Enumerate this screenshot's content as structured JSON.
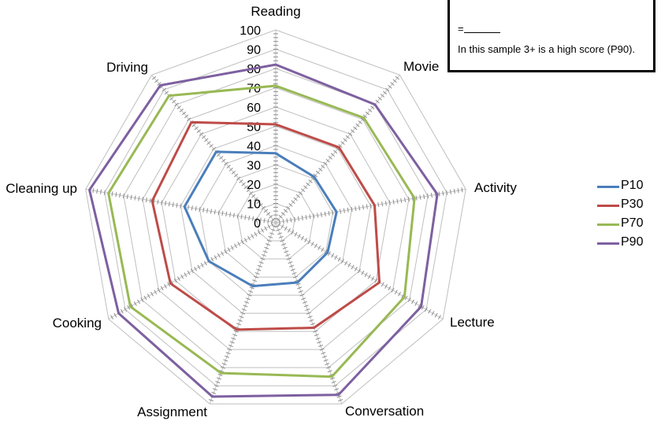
{
  "chart_data": {
    "type": "radar",
    "axes": [
      "Reading",
      "Movie",
      "Activity",
      "Lecture",
      "Conversation",
      "Assignment",
      "Cooking",
      "Cleaning up",
      "Driving"
    ],
    "ticks": [
      "0",
      "10",
      "20",
      "30",
      "40",
      "50",
      "60",
      "70",
      "80",
      "90",
      "100"
    ],
    "range": [
      0,
      100
    ],
    "series": [
      {
        "name": "P10",
        "color": "#4a7ebb",
        "values": [
          36,
          31,
          32,
          31,
          33,
          35,
          40,
          48,
          48
        ]
      },
      {
        "name": "P30",
        "color": "#be4b48",
        "values": [
          51,
          51,
          52,
          62,
          58,
          59,
          63,
          65,
          68
        ]
      },
      {
        "name": "P70",
        "color": "#98b954",
        "values": [
          71,
          71,
          73,
          77,
          85,
          83,
          87,
          88,
          86
        ]
      },
      {
        "name": "P90",
        "color": "#7d60a0",
        "values": [
          82,
          80,
          85,
          87,
          95,
          96,
          94,
          98,
          93
        ]
      }
    ],
    "legend_position": "right"
  },
  "note": {
    "line1": "",
    "blank": "=",
    "line3": "In this sample 3+ is a high score (P90)."
  }
}
